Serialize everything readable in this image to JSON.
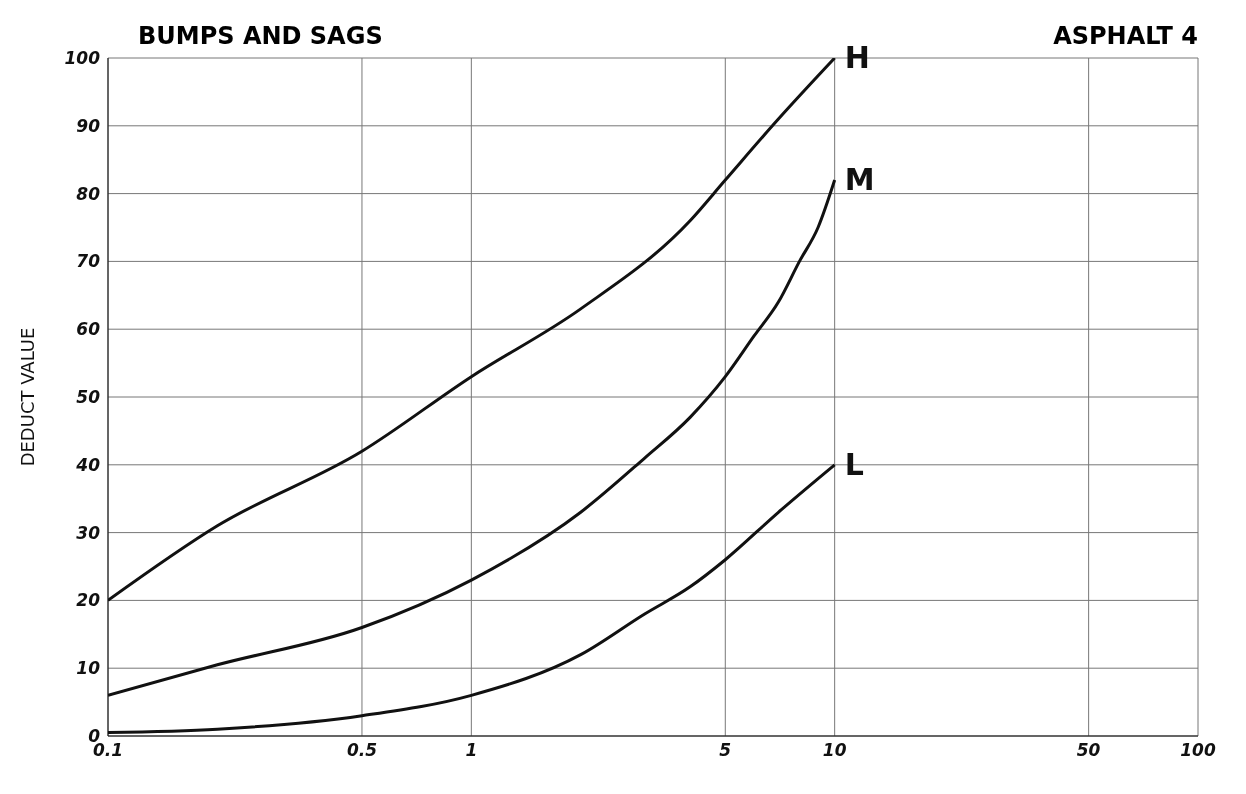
{
  "chart_data": {
    "type": "line",
    "title": "BUMPS AND SAGS",
    "ylabel": "DEDUCT VALUE",
    "annotations": [
      "ASPHALT 4"
    ],
    "log": "x",
    "grid": true,
    "marker": "none",
    "line_style": "solid",
    "xlim": [
      0.1,
      100
    ],
    "xticks": [
      {
        "value": 0.1,
        "label": "0.1"
      },
      {
        "value": 0.5,
        "label": "0.5"
      },
      1,
      5,
      10,
      50,
      100
    ],
    "ylim": [
      0,
      100
    ],
    "yticks": [
      0,
      10,
      20,
      30,
      40,
      50,
      60,
      70,
      80,
      90,
      100
    ],
    "series": [
      {
        "name": "H",
        "color": "#111111",
        "x": [
          0.1,
          0.2,
          0.5,
          1,
          2,
          4,
          5,
          7,
          10
        ],
        "values": [
          20,
          31,
          42,
          53,
          63,
          76,
          82,
          91,
          100
        ]
      },
      {
        "name": "M",
        "color": "#111111",
        "x": [
          0.1,
          0.2,
          0.5,
          1,
          2,
          3,
          4,
          5,
          6,
          7,
          8,
          9,
          10
        ],
        "values": [
          6,
          10.5,
          16,
          23,
          33,
          41,
          47,
          53,
          59,
          64,
          70,
          75,
          82
        ]
      },
      {
        "name": "L",
        "color": "#111111",
        "x": [
          0.1,
          0.2,
          0.5,
          1,
          2,
          3,
          4,
          5,
          7,
          10
        ],
        "values": [
          0.5,
          1,
          3,
          6,
          12,
          18,
          22,
          26,
          33,
          40
        ]
      }
    ]
  }
}
